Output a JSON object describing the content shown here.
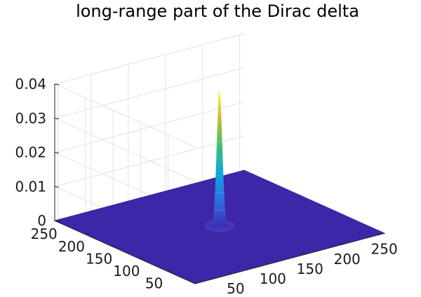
{
  "chart_data": {
    "type": "surface",
    "title": "long-range part of the Dirac delta",
    "xlabel": "",
    "ylabel": "",
    "zlabel": "",
    "x_range": [
      1,
      256
    ],
    "y_range": [
      1,
      256
    ],
    "zlim": [
      0,
      0.04
    ],
    "x_ticks": [
      "50",
      "100",
      "150",
      "200",
      "250"
    ],
    "y_ticks": [
      "50",
      "100",
      "150",
      "200",
      "250"
    ],
    "z_ticks": [
      "0",
      "0.01",
      "0.02",
      "0.03",
      "0.04"
    ],
    "peak": {
      "x": 128,
      "y": 128,
      "z": 0.04
    },
    "base_value": 0,
    "grid": true,
    "colormap": "parula",
    "colors": {
      "floor": "#3d26a8",
      "peak_low": "#3e2cb0",
      "peak_high": "#f9fb0e",
      "grid": "#e3e3e3",
      "axis": "#262626"
    }
  }
}
